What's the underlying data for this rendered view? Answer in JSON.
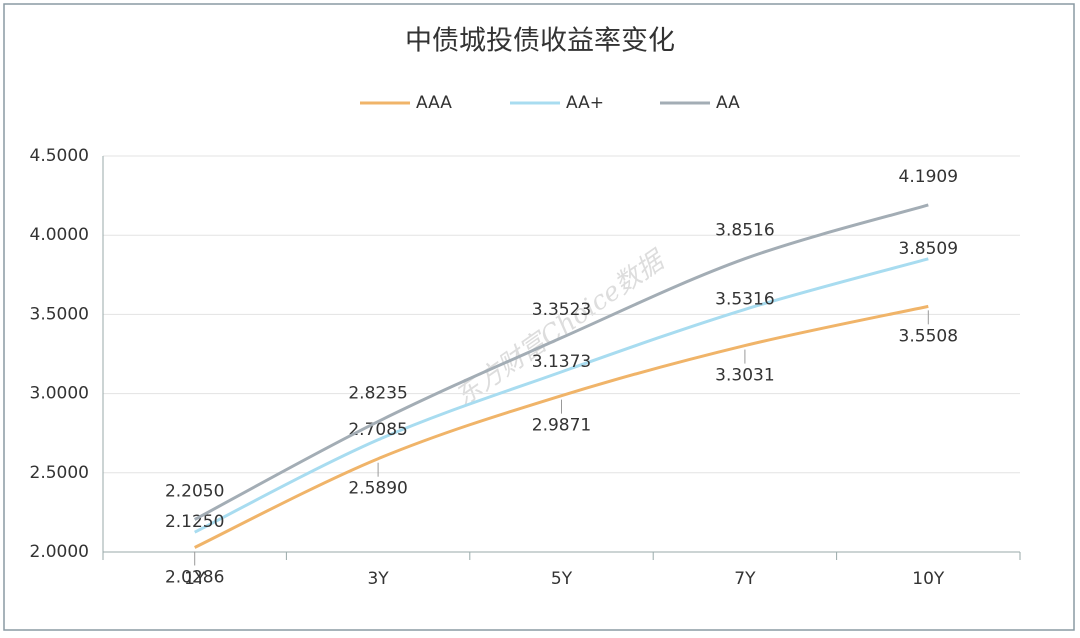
{
  "chart_data": {
    "type": "line",
    "title": "中债城投债收益率变化",
    "watermark": "东方财富Choice数据",
    "categories": [
      "1Y",
      "3Y",
      "5Y",
      "7Y",
      "10Y"
    ],
    "series": [
      {
        "name": "AAA",
        "color": "#f0b469",
        "values": [
          2.0286,
          2.589,
          2.9871,
          3.3031,
          3.5508
        ],
        "value_labels": [
          "2.0286",
          "2.5890",
          "2.9871",
          "3.3031",
          "3.5508"
        ]
      },
      {
        "name": "AA+",
        "color": "#a8dcf0",
        "values": [
          2.125,
          2.7085,
          3.1373,
          3.5316,
          3.8509
        ],
        "value_labels": [
          "2.1250",
          "2.7085",
          "3.1373",
          "3.5316",
          "3.8509"
        ]
      },
      {
        "name": "AA",
        "color": "#a3adb5",
        "values": [
          2.205,
          2.8235,
          3.3523,
          3.8516,
          4.1909
        ],
        "value_labels": [
          "2.2050",
          "2.8235",
          "3.3523",
          "3.8516",
          "4.1909"
        ]
      }
    ],
    "ylim": [
      2.0,
      4.5
    ],
    "yticks": [
      {
        "value": 2.0,
        "label": "2.0000"
      },
      {
        "value": 2.5,
        "label": "2.5000"
      },
      {
        "value": 3.0,
        "label": "3.0000"
      },
      {
        "value": 3.5,
        "label": "3.5000"
      },
      {
        "value": 4.0,
        "label": "4.0000"
      },
      {
        "value": 4.5,
        "label": "4.5000"
      }
    ],
    "grid": true,
    "legend": "top"
  }
}
